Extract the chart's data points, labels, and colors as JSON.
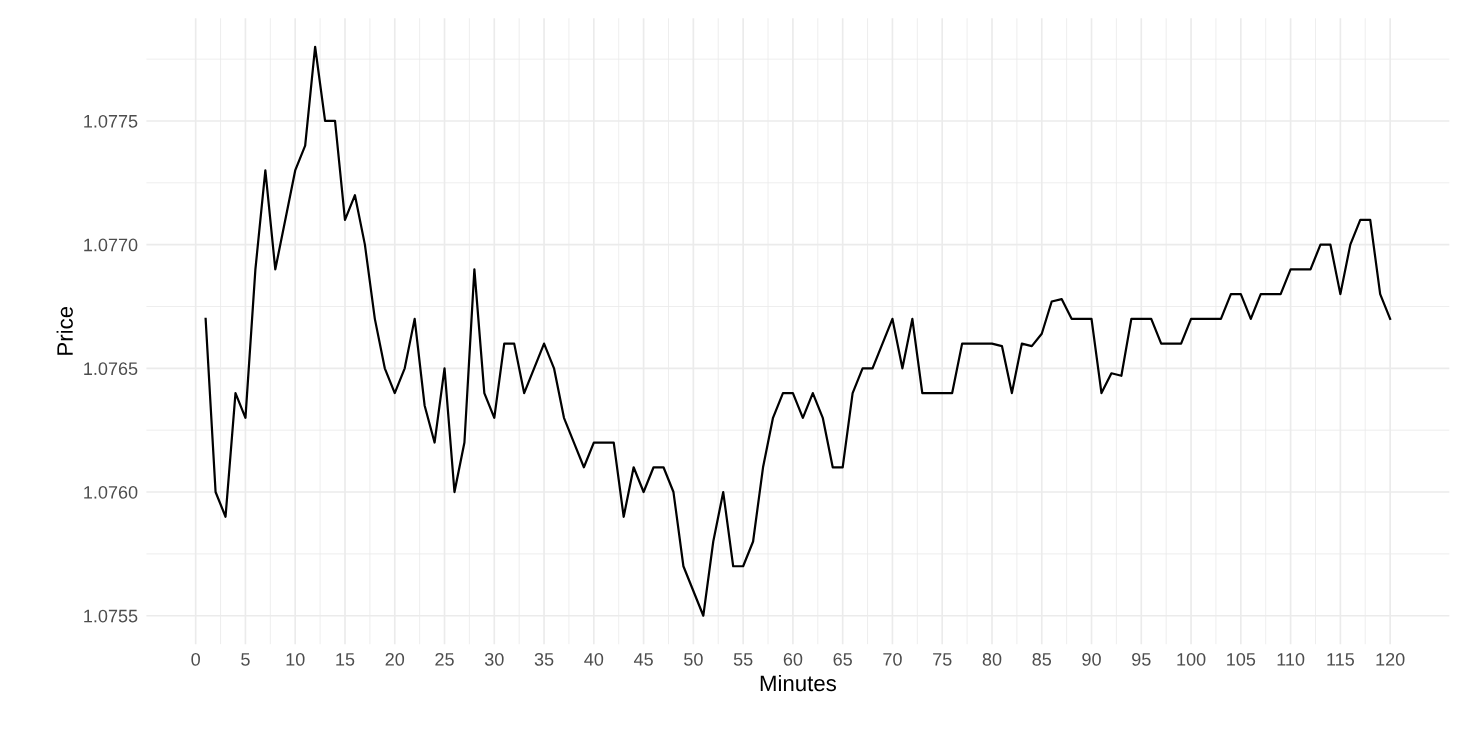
{
  "chart_data": {
    "type": "line",
    "xlabel": "Minutes",
    "ylabel": "Price",
    "x": [
      1,
      2,
      3,
      4,
      5,
      6,
      7,
      8,
      9,
      10,
      11,
      12,
      13,
      14,
      15,
      16,
      17,
      18,
      19,
      20,
      21,
      22,
      23,
      24,
      25,
      26,
      27,
      28,
      29,
      30,
      31,
      32,
      33,
      34,
      35,
      36,
      37,
      38,
      39,
      40,
      41,
      42,
      43,
      44,
      45,
      46,
      47,
      48,
      49,
      50,
      51,
      52,
      53,
      54,
      55,
      56,
      57,
      58,
      59,
      60,
      61,
      62,
      63,
      64,
      65,
      66,
      67,
      68,
      69,
      70,
      71,
      72,
      73,
      74,
      75,
      76,
      77,
      78,
      79,
      80,
      81,
      82,
      83,
      84,
      85,
      86,
      87,
      88,
      89,
      90,
      91,
      92,
      93,
      94,
      95,
      96,
      97,
      98,
      99,
      100,
      101,
      102,
      103,
      104,
      105,
      106,
      107,
      108,
      109,
      110,
      111,
      112,
      113,
      114,
      115,
      116,
      117,
      118,
      119,
      120
    ],
    "series": [
      {
        "color": "#000000",
        "values": [
          1.0767,
          1.076,
          1.0759,
          1.0764,
          1.0763,
          1.0769,
          1.0773,
          1.0769,
          1.0771,
          1.0773,
          1.0774,
          1.0778,
          1.0775,
          1.0775,
          1.0771,
          1.0772,
          1.077,
          1.0767,
          1.0765,
          1.0764,
          1.0765,
          1.0767,
          1.07635,
          1.0762,
          1.0765,
          1.076,
          1.0762,
          1.0769,
          1.0764,
          1.0763,
          1.0766,
          1.0766,
          1.0764,
          1.0765,
          1.0766,
          1.0765,
          1.0763,
          1.0762,
          1.0761,
          1.0762,
          1.0762,
          1.0762,
          1.0759,
          1.0761,
          1.076,
          1.0761,
          1.0761,
          1.076,
          1.0757,
          1.0756,
          1.0755,
          1.0758,
          1.076,
          1.0757,
          1.0757,
          1.0758,
          1.0761,
          1.0763,
          1.0764,
          1.0764,
          1.0763,
          1.0764,
          1.0763,
          1.0761,
          1.0761,
          1.0764,
          1.0765,
          1.0765,
          1.0766,
          1.0767,
          1.0765,
          1.0767,
          1.0764,
          1.0764,
          1.0764,
          1.0764,
          1.0766,
          1.0766,
          1.0766,
          1.0766,
          1.07659,
          1.0764,
          1.0766,
          1.07659,
          1.07664,
          1.07677,
          1.07678,
          1.0767,
          1.0767,
          1.0767,
          1.0764,
          1.07648,
          1.07647,
          1.0767,
          1.0767,
          1.0767,
          1.0766,
          1.0766,
          1.0766,
          1.0767,
          1.0767,
          1.0767,
          1.0767,
          1.0768,
          1.0768,
          1.0767,
          1.0768,
          1.0768,
          1.0768,
          1.0769,
          1.0769,
          1.0769,
          1.077,
          1.077,
          1.0768,
          1.077,
          1.0771,
          1.0771,
          1.0768,
          1.0767
        ]
      }
    ],
    "xlim": [
      -4.95,
      125.95
    ],
    "ylim": [
      1.075385,
      1.077915
    ],
    "xticks": [
      0,
      5,
      10,
      15,
      20,
      25,
      30,
      35,
      40,
      45,
      50,
      55,
      60,
      65,
      70,
      75,
      80,
      85,
      90,
      95,
      100,
      105,
      110,
      115,
      120
    ],
    "yticks": [
      {
        "value": 1.0755,
        "label": "1.0755"
      },
      {
        "value": 1.076,
        "label": "1.0760"
      },
      {
        "value": 1.0765,
        "label": "1.0765"
      },
      {
        "value": 1.077,
        "label": "1.0770"
      },
      {
        "value": 1.0775,
        "label": "1.0775"
      }
    ],
    "grid": true,
    "marker": "none",
    "line_style": "solid"
  }
}
